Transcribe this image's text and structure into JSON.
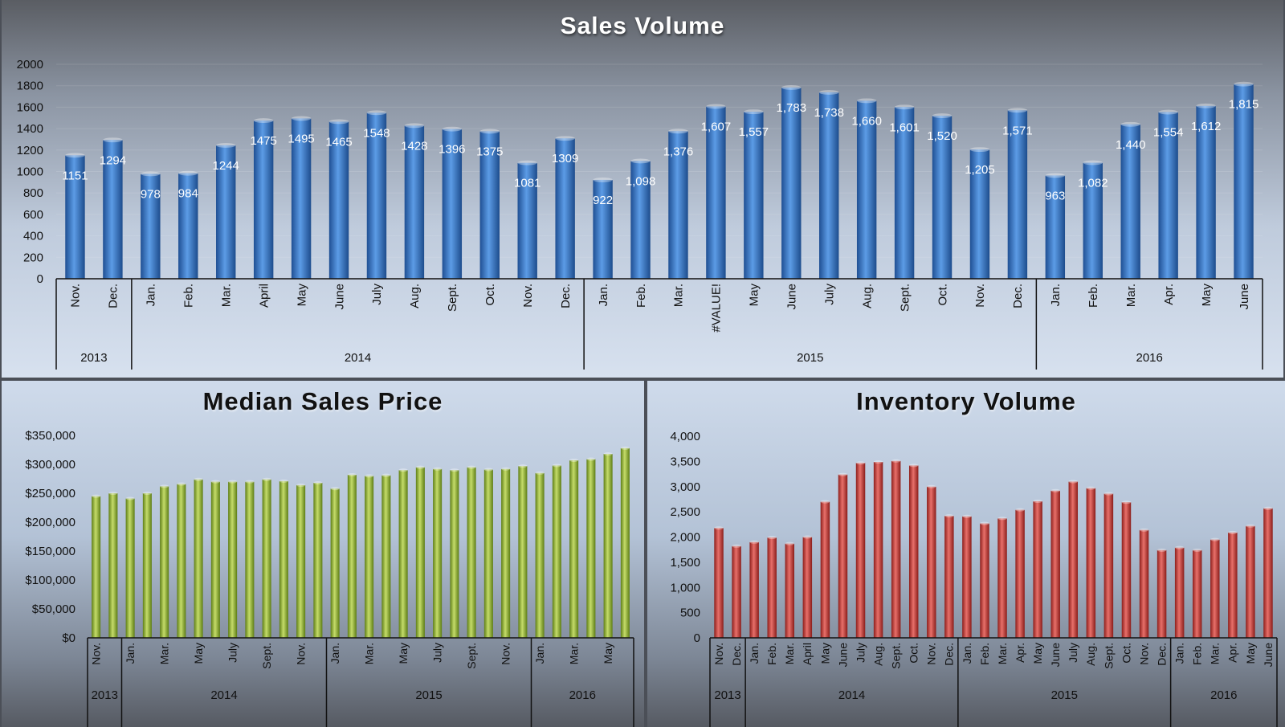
{
  "chart_data": [
    {
      "type": "bar",
      "title": "Sales Volume",
      "color": "#3a7fd0",
      "ylim": [
        0,
        2000
      ],
      "yticks": [
        "0",
        "200",
        "400",
        "600",
        "800",
        "1000",
        "1200",
        "1400",
        "1600",
        "1800",
        "2000"
      ],
      "categories": [
        "Nov.",
        "Dec.",
        "Jan.",
        "Feb.",
        "Mar.",
        "April",
        "May",
        "June",
        "July",
        "Aug.",
        "Sept.",
        "Oct.",
        "Nov.",
        "Dec.",
        "Jan.",
        "Feb.",
        "Mar.",
        "#VALUE!",
        "May",
        "June",
        "July",
        "Aug.",
        "Sept.",
        "Oct.",
        "Nov.",
        "Dec.",
        "Jan.",
        "Feb.",
        "Mar.",
        "Apr.",
        "May",
        "June"
      ],
      "values": [
        1151,
        1294,
        978,
        984,
        1244,
        1475,
        1495,
        1465,
        1548,
        1428,
        1396,
        1375,
        1081,
        1309,
        922,
        1098,
        1376,
        1607,
        1557,
        1783,
        1738,
        1660,
        1601,
        1520,
        1205,
        1571,
        963,
        1082,
        1440,
        1554,
        1612,
        1815
      ],
      "data_labels": [
        "1151",
        "1294",
        "978",
        "984",
        "1244",
        "1475",
        "1495",
        "1465",
        "1548",
        "1428",
        "1396",
        "1375",
        "1081",
        "1309",
        "922",
        "1,098",
        "1,376",
        "1,607",
        "1,557",
        "1,783",
        "1,738",
        "1,660",
        "1,601",
        "1,520",
        "1,205",
        "1,571",
        "963",
        "1,082",
        "1,440",
        "1,554",
        "1,612",
        "1,815"
      ],
      "groups": [
        {
          "label": "2013",
          "count": 2
        },
        {
          "label": "2014",
          "count": 12
        },
        {
          "label": "2015",
          "count": 12
        },
        {
          "label": "2016",
          "count": 6
        }
      ]
    },
    {
      "type": "bar",
      "title": "Median Sales Price",
      "color": "#9ab83a",
      "ylim": [
        0,
        350000
      ],
      "yticks": [
        "$0",
        "$50,000",
        "$100,000",
        "$150,000",
        "$200,000",
        "$250,000",
        "$300,000",
        "$350,000"
      ],
      "categories": [
        "Nov.",
        "",
        "Jan.",
        "",
        "Mar.",
        "",
        "May",
        "",
        "July",
        "",
        "Sept.",
        "",
        "Nov.",
        "",
        "Jan.",
        "",
        "Mar.",
        "",
        "May",
        "",
        "July",
        "",
        "Sept.",
        "",
        "Nov.",
        "",
        "Jan.",
        "",
        "Mar.",
        "",
        "May",
        ""
      ],
      "values": [
        245000,
        250000,
        241000,
        250000,
        262000,
        266000,
        274000,
        270000,
        270000,
        270000,
        274000,
        271000,
        264000,
        268000,
        258000,
        282000,
        280000,
        281000,
        290000,
        295000,
        292000,
        290000,
        295000,
        291000,
        292000,
        297000,
        285000,
        298000,
        307000,
        309000,
        318000,
        328000
      ],
      "groups": [
        {
          "label": "2013",
          "count": 2
        },
        {
          "label": "2014",
          "count": 12
        },
        {
          "label": "2015",
          "count": 12
        },
        {
          "label": "2016",
          "count": 6
        }
      ]
    },
    {
      "type": "bar",
      "title": "Inventory Volume",
      "color": "#c8413c",
      "ylim": [
        0,
        4000
      ],
      "yticks": [
        "0",
        "500",
        "1,000",
        "1,500",
        "2,000",
        "2,500",
        "3,000",
        "3,500",
        "4,000"
      ],
      "categories": [
        "Nov.",
        "Dec.",
        "Jan.",
        "Feb.",
        "Mar.",
        "April",
        "May",
        "June",
        "July",
        "Aug.",
        "Sept.",
        "Oct.",
        "Nov.",
        "Dec.",
        "Jan.",
        "Feb.",
        "Mar.",
        "Apr.",
        "May",
        "June",
        "July",
        "Aug.",
        "Sept.",
        "Oct.",
        "Nov.",
        "Dec.",
        "Jan.",
        "Feb.",
        "Mar.",
        "Apr.",
        "May",
        "June"
      ],
      "values": [
        2180,
        1820,
        1900,
        1990,
        1870,
        2000,
        2700,
        3240,
        3470,
        3490,
        3510,
        3420,
        3000,
        2420,
        2410,
        2270,
        2370,
        2540,
        2710,
        2920,
        3100,
        2970,
        2860,
        2690,
        2140,
        1740,
        1790,
        1740,
        1950,
        2090,
        2220,
        2570
      ],
      "groups": [
        {
          "label": "2013",
          "count": 2
        },
        {
          "label": "2014",
          "count": 12
        },
        {
          "label": "2015",
          "count": 12
        },
        {
          "label": "2016",
          "count": 6
        }
      ]
    }
  ]
}
